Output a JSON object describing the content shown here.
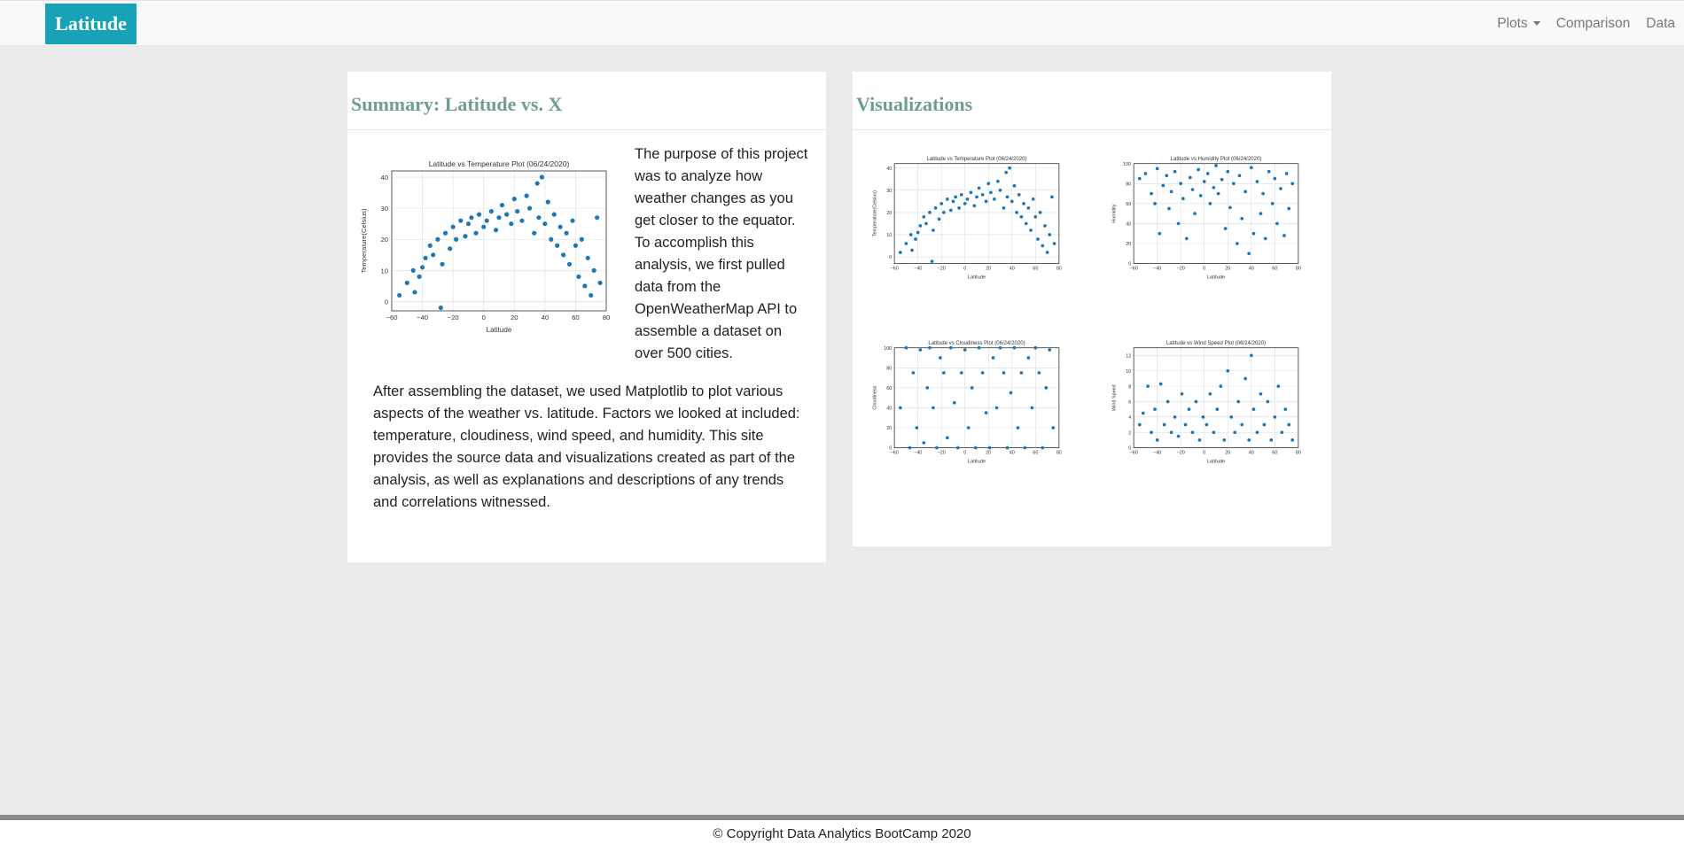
{
  "navbar": {
    "brand": "Latitude",
    "links": [
      {
        "label": "Plots",
        "dropdown": true
      },
      {
        "label": "Comparison"
      },
      {
        "label": "Data"
      }
    ]
  },
  "summary": {
    "title": "Summary: Latitude vs. X",
    "paragraph1": "The purpose of this project was to analyze how weather changes as you get closer to the equator. To accomplish this analysis, we first pulled data from the OpenWeatherMap API to assemble a dataset on over 500 cities.",
    "paragraph2": "After assembling the dataset, we used Matplotlib to plot various aspects of the weather vs. latitude. Factors we looked at included: temperature, cloudiness, wind speed, and humidity. This site provides the source data and visualizations created as part of the analysis, as well as explanations and descriptions of any trends and correlations witnessed."
  },
  "visualizations": {
    "title": "Visualizations"
  },
  "footer": {
    "text": "© Copyright Data Analytics BootCamp 2020"
  },
  "colors": {
    "brand": "#17a2b8",
    "heading": "#6f9f8b",
    "point": "#1f77b4"
  },
  "chart_data": [
    {
      "type": "scatter",
      "id": "temperature",
      "title": "Latitude vs Temperature Plot (06/24/2020)",
      "xlabel": "Latitude",
      "ylabel": "Temperature(Celsius)",
      "xlim": [
        -60,
        80
      ],
      "ylim": [
        -3,
        42
      ],
      "xticks": [
        -60,
        -40,
        -20,
        0,
        20,
        40,
        60,
        80
      ],
      "yticks": [
        0,
        10,
        20,
        30,
        40
      ],
      "grid": true,
      "points": [
        [
          -55,
          2
        ],
        [
          -50,
          6
        ],
        [
          -46,
          10
        ],
        [
          -45,
          3
        ],
        [
          -42,
          8
        ],
        [
          -40,
          11
        ],
        [
          -38,
          14
        ],
        [
          -35,
          18
        ],
        [
          -33,
          15
        ],
        [
          -30,
          20
        ],
        [
          -28,
          -2
        ],
        [
          -27,
          12
        ],
        [
          -25,
          22
        ],
        [
          -22,
          17
        ],
        [
          -20,
          24
        ],
        [
          -18,
          20
        ],
        [
          -15,
          26
        ],
        [
          -12,
          21
        ],
        [
          -10,
          25
        ],
        [
          -8,
          27
        ],
        [
          -5,
          22
        ],
        [
          -3,
          28
        ],
        [
          0,
          24
        ],
        [
          2,
          26
        ],
        [
          5,
          29
        ],
        [
          8,
          23
        ],
        [
          10,
          27
        ],
        [
          12,
          31
        ],
        [
          15,
          28
        ],
        [
          18,
          25
        ],
        [
          20,
          33
        ],
        [
          22,
          29
        ],
        [
          25,
          26
        ],
        [
          28,
          34
        ],
        [
          30,
          30
        ],
        [
          33,
          22
        ],
        [
          35,
          38
        ],
        [
          36,
          27
        ],
        [
          38,
          40
        ],
        [
          40,
          25
        ],
        [
          42,
          32
        ],
        [
          44,
          20
        ],
        [
          46,
          28
        ],
        [
          48,
          18
        ],
        [
          50,
          24
        ],
        [
          52,
          15
        ],
        [
          54,
          22
        ],
        [
          56,
          12
        ],
        [
          58,
          26
        ],
        [
          60,
          18
        ],
        [
          62,
          8
        ],
        [
          64,
          20
        ],
        [
          66,
          5
        ],
        [
          68,
          14
        ],
        [
          70,
          2
        ],
        [
          72,
          10
        ],
        [
          74,
          27
        ],
        [
          76,
          6
        ]
      ]
    },
    {
      "type": "scatter",
      "id": "humidity",
      "title": "Latitude vs Humidity Plot (06/24/2020)",
      "xlabel": "Latitude",
      "ylabel": "Humidity",
      "xlim": [
        -60,
        80
      ],
      "ylim": [
        0,
        100
      ],
      "xticks": [
        -60,
        -40,
        -20,
        0,
        20,
        40,
        60,
        80
      ],
      "yticks": [
        0,
        20,
        40,
        60,
        80,
        100
      ],
      "grid": true,
      "points": [
        [
          -55,
          85
        ],
        [
          -50,
          90
        ],
        [
          -45,
          70
        ],
        [
          -42,
          60
        ],
        [
          -40,
          95
        ],
        [
          -38,
          30
        ],
        [
          -35,
          78
        ],
        [
          -32,
          88
        ],
        [
          -30,
          55
        ],
        [
          -28,
          72
        ],
        [
          -25,
          92
        ],
        [
          -22,
          40
        ],
        [
          -20,
          80
        ],
        [
          -18,
          65
        ],
        [
          -15,
          25
        ],
        [
          -12,
          86
        ],
        [
          -10,
          74
        ],
        [
          -8,
          50
        ],
        [
          -5,
          94
        ],
        [
          -3,
          68
        ],
        [
          0,
          82
        ],
        [
          3,
          90
        ],
        [
          5,
          60
        ],
        [
          8,
          76
        ],
        [
          10,
          98
        ],
        [
          12,
          70
        ],
        [
          15,
          84
        ],
        [
          18,
          35
        ],
        [
          20,
          92
        ],
        [
          22,
          56
        ],
        [
          25,
          80
        ],
        [
          28,
          20
        ],
        [
          30,
          88
        ],
        [
          32,
          45
        ],
        [
          35,
          72
        ],
        [
          38,
          10
        ],
        [
          40,
          96
        ],
        [
          42,
          30
        ],
        [
          45,
          82
        ],
        [
          48,
          50
        ],
        [
          50,
          70
        ],
        [
          52,
          25
        ],
        [
          55,
          92
        ],
        [
          58,
          60
        ],
        [
          60,
          85
        ],
        [
          62,
          40
        ],
        [
          65,
          75
        ],
        [
          68,
          28
        ],
        [
          70,
          90
        ],
        [
          72,
          55
        ],
        [
          75,
          80
        ]
      ]
    },
    {
      "type": "scatter",
      "id": "cloudiness",
      "title": "Latitude vs Cloudiness Plot (06/24/2020)",
      "xlabel": "Latitude",
      "ylabel": "Cloudiness",
      "xlim": [
        -60,
        80
      ],
      "ylim": [
        0,
        100
      ],
      "xticks": [
        -60,
        -40,
        -20,
        0,
        20,
        40,
        60,
        80
      ],
      "yticks": [
        0,
        20,
        40,
        60,
        80,
        100
      ],
      "grid": true,
      "points": [
        [
          -55,
          40
        ],
        [
          -50,
          100
        ],
        [
          -47,
          0
        ],
        [
          -44,
          75
        ],
        [
          -41,
          20
        ],
        [
          -38,
          98
        ],
        [
          -35,
          5
        ],
        [
          -32,
          60
        ],
        [
          -30,
          100
        ],
        [
          -27,
          40
        ],
        [
          -24,
          0
        ],
        [
          -21,
          90
        ],
        [
          -18,
          75
        ],
        [
          -15,
          10
        ],
        [
          -12,
          100
        ],
        [
          -9,
          45
        ],
        [
          -6,
          0
        ],
        [
          -3,
          75
        ],
        [
          0,
          98
        ],
        [
          3,
          20
        ],
        [
          6,
          60
        ],
        [
          9,
          0
        ],
        [
          12,
          100
        ],
        [
          15,
          75
        ],
        [
          18,
          35
        ],
        [
          21,
          0
        ],
        [
          24,
          90
        ],
        [
          27,
          40
        ],
        [
          30,
          100
        ],
        [
          33,
          75
        ],
        [
          36,
          0
        ],
        [
          39,
          55
        ],
        [
          42,
          100
        ],
        [
          45,
          20
        ],
        [
          48,
          75
        ],
        [
          51,
          0
        ],
        [
          54,
          90
        ],
        [
          57,
          40
        ],
        [
          60,
          100
        ],
        [
          63,
          75
        ],
        [
          66,
          0
        ],
        [
          69,
          60
        ],
        [
          72,
          98
        ],
        [
          75,
          20
        ]
      ]
    },
    {
      "type": "scatter",
      "id": "wind",
      "title": "Latitude vs Wind Speed Plot (06/24/2020)",
      "xlabel": "Latitude",
      "ylabel": "Wind Speed",
      "xlim": [
        -60,
        80
      ],
      "ylim": [
        0,
        13
      ],
      "xticks": [
        -60,
        -40,
        -20,
        0,
        20,
        40,
        60,
        80
      ],
      "yticks": [
        0,
        2,
        4,
        6,
        8,
        10,
        12
      ],
      "grid": true,
      "points": [
        [
          -55,
          3
        ],
        [
          -52,
          4.5
        ],
        [
          -48,
          8
        ],
        [
          -45,
          2
        ],
        [
          -42,
          5
        ],
        [
          -40,
          1
        ],
        [
          -37,
          8.3
        ],
        [
          -34,
          3
        ],
        [
          -31,
          6
        ],
        [
          -28,
          2
        ],
        [
          -25,
          4
        ],
        [
          -22,
          1.5
        ],
        [
          -19,
          7
        ],
        [
          -16,
          3
        ],
        [
          -13,
          5
        ],
        [
          -10,
          2
        ],
        [
          -7,
          6
        ],
        [
          -4,
          1
        ],
        [
          -1,
          4
        ],
        [
          2,
          3
        ],
        [
          5,
          7
        ],
        [
          8,
          2
        ],
        [
          11,
          5
        ],
        [
          14,
          8
        ],
        [
          17,
          1
        ],
        [
          20,
          10
        ],
        [
          23,
          4
        ],
        [
          26,
          2
        ],
        [
          29,
          6
        ],
        [
          32,
          3
        ],
        [
          35,
          9
        ],
        [
          38,
          1
        ],
        [
          40,
          12
        ],
        [
          42,
          5
        ],
        [
          45,
          2
        ],
        [
          48,
          7
        ],
        [
          51,
          3
        ],
        [
          54,
          6
        ],
        [
          57,
          1
        ],
        [
          60,
          4
        ],
        [
          63,
          8
        ],
        [
          66,
          2
        ],
        [
          69,
          5
        ],
        [
          72,
          3
        ],
        [
          75,
          1
        ]
      ]
    }
  ]
}
